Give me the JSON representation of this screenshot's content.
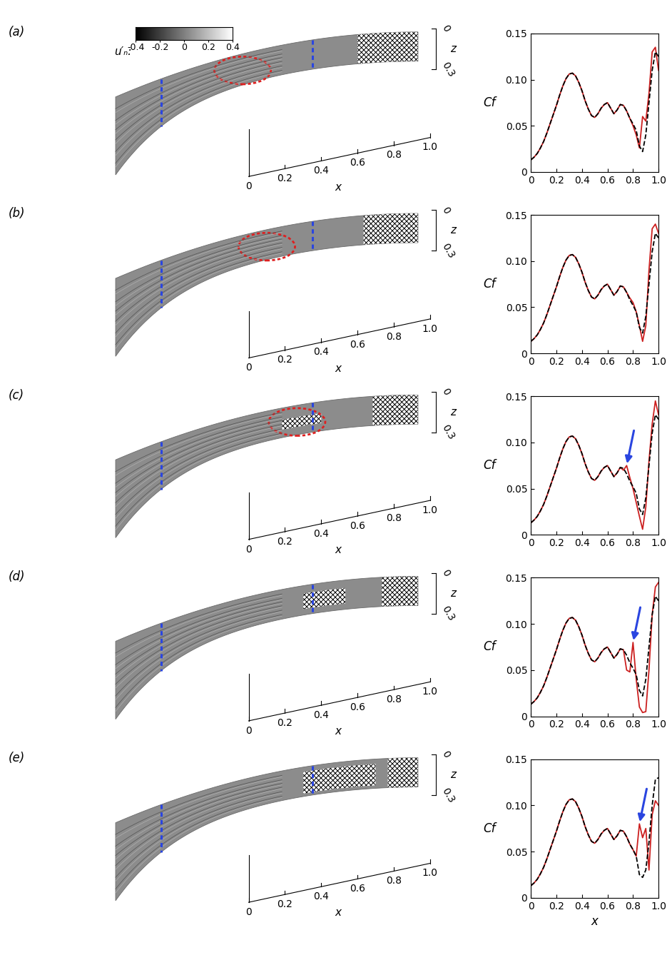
{
  "colorbar": {
    "label": "u′ₙ:",
    "lim": [
      -0.4,
      0.4
    ],
    "ticks": [
      -0.4,
      -0.2,
      0,
      0.2,
      0.4
    ]
  },
  "surface_axes": {
    "x_label": "x",
    "z_label": "z",
    "xlim": [
      0,
      1.0
    ],
    "zlim": [
      0,
      0.3
    ],
    "xticks": [
      0,
      0.2,
      0.4,
      0.6,
      0.8,
      {
        "value": 1.0,
        "label": "1.0"
      }
    ],
    "zticks": [
      0,
      0.3
    ]
  },
  "surfaces": [
    {
      "dashed_x": [
        0.15,
        0.65
      ],
      "ellipse": {
        "x": 0.42,
        "z": 0.16
      },
      "turbulent_regions": [
        {
          "x": [
            0.8,
            1.0
          ],
          "z": [
            0.0,
            0.3
          ]
        }
      ]
    },
    {
      "dashed_x": [
        0.15,
        0.65
      ],
      "ellipse": {
        "x": 0.5,
        "z": 0.17
      },
      "turbulent_regions": [
        {
          "x": [
            0.82,
            1.0
          ],
          "z": [
            0.0,
            0.3
          ]
        }
      ]
    },
    {
      "dashed_x": [
        0.15,
        0.65
      ],
      "ellipse": {
        "x": 0.6,
        "z": 0.17
      },
      "turbulent_regions": [
        {
          "x": [
            0.55,
            0.68
          ],
          "z": [
            0.12,
            0.22
          ]
        },
        {
          "x": [
            0.85,
            1.0
          ],
          "z": [
            0.0,
            0.3
          ]
        }
      ]
    },
    {
      "dashed_x": [
        0.15,
        0.65
      ],
      "ellipse": null,
      "turbulent_regions": [
        {
          "x": [
            0.62,
            0.76
          ],
          "z": [
            0.08,
            0.24
          ]
        },
        {
          "x": [
            0.88,
            1.0
          ],
          "z": [
            0.0,
            0.3
          ]
        }
      ]
    },
    {
      "dashed_x": [
        0.15,
        0.65
      ],
      "ellipse": null,
      "turbulent_regions": [
        {
          "x": [
            0.62,
            0.86
          ],
          "z": [
            0.05,
            0.27
          ]
        },
        {
          "x": [
            0.9,
            1.0
          ],
          "z": [
            0.0,
            0.3
          ]
        }
      ]
    }
  ],
  "chart_data": [
    {
      "type": "line",
      "title": "(a)",
      "y_label": "Cf",
      "xlim": [
        0,
        1.0
      ],
      "ylim": [
        0,
        0.15
      ],
      "xticks": [
        0,
        0.2,
        0.4,
        0.6,
        0.8,
        {
          "value": 1.0,
          "label": "1.0"
        }
      ],
      "yticks": [
        0,
        0.05,
        {
          "value": 0.1,
          "label": "0.10"
        },
        0.15
      ],
      "arrow_x": null,
      "x": [
        0,
        0.025,
        0.05,
        0.075,
        0.1,
        0.125,
        0.15,
        0.175,
        0.2,
        0.225,
        0.25,
        0.275,
        0.3,
        0.325,
        0.35,
        0.375,
        0.4,
        0.425,
        0.45,
        0.475,
        0.5,
        0.525,
        0.55,
        0.575,
        0.6,
        0.625,
        0.65,
        0.675,
        0.7,
        0.725,
        0.75,
        0.775,
        0.8,
        0.825,
        0.85,
        0.875,
        0.9,
        0.925,
        0.95,
        0.975,
        1.0
      ],
      "series": [
        {
          "color": "#cc2020",
          "line_style": "solid",
          "values": [
            0.013,
            0.016,
            0.02,
            0.026,
            0.033,
            0.042,
            0.052,
            0.062,
            0.072,
            0.083,
            0.093,
            0.101,
            0.106,
            0.107,
            0.104,
            0.097,
            0.088,
            0.077,
            0.068,
            0.061,
            0.059,
            0.063,
            0.069,
            0.073,
            0.075,
            0.069,
            0.063,
            0.067,
            0.073,
            0.072,
            0.066,
            0.058,
            0.05,
            0.04,
            0.026,
            0.06,
            0.055,
            0.085,
            0.13,
            0.135,
            0.11
          ]
        },
        {
          "color": "#000000",
          "line_style": "dashed",
          "values": [
            0.013,
            0.016,
            0.02,
            0.026,
            0.033,
            0.042,
            0.052,
            0.062,
            0.072,
            0.083,
            0.093,
            0.101,
            0.106,
            0.107,
            0.104,
            0.097,
            0.088,
            0.077,
            0.068,
            0.061,
            0.059,
            0.063,
            0.069,
            0.073,
            0.075,
            0.069,
            0.063,
            0.067,
            0.073,
            0.072,
            0.066,
            0.058,
            0.052,
            0.045,
            0.028,
            0.022,
            0.04,
            0.075,
            0.11,
            0.13,
            0.125
          ]
        }
      ]
    },
    {
      "type": "line",
      "title": "(b)",
      "y_label": "Cf",
      "xlim": [
        0,
        1.0
      ],
      "ylim": [
        0,
        0.15
      ],
      "xticks": [
        0,
        0.2,
        0.4,
        0.6,
        0.8,
        {
          "value": 1.0,
          "label": "1.0"
        }
      ],
      "yticks": [
        0,
        0.05,
        {
          "value": 0.1,
          "label": "0.10"
        },
        0.15
      ],
      "arrow_x": null,
      "x": [
        0,
        0.025,
        0.05,
        0.075,
        0.1,
        0.125,
        0.15,
        0.175,
        0.2,
        0.225,
        0.25,
        0.275,
        0.3,
        0.325,
        0.35,
        0.375,
        0.4,
        0.425,
        0.45,
        0.475,
        0.5,
        0.525,
        0.55,
        0.575,
        0.6,
        0.625,
        0.65,
        0.675,
        0.7,
        0.725,
        0.75,
        0.775,
        0.8,
        0.825,
        0.85,
        0.875,
        0.9,
        0.925,
        0.95,
        0.975,
        1.0
      ],
      "series": [
        {
          "color": "#cc2020",
          "line_style": "solid",
          "values": [
            0.013,
            0.016,
            0.02,
            0.026,
            0.033,
            0.042,
            0.052,
            0.062,
            0.072,
            0.083,
            0.093,
            0.101,
            0.106,
            0.107,
            0.104,
            0.097,
            0.088,
            0.077,
            0.068,
            0.061,
            0.059,
            0.063,
            0.069,
            0.073,
            0.075,
            0.069,
            0.063,
            0.067,
            0.073,
            0.072,
            0.066,
            0.06,
            0.055,
            0.045,
            0.03,
            0.013,
            0.03,
            0.09,
            0.135,
            0.14,
            0.13
          ]
        },
        {
          "color": "#000000",
          "line_style": "dashed",
          "values": [
            0.013,
            0.016,
            0.02,
            0.026,
            0.033,
            0.042,
            0.052,
            0.062,
            0.072,
            0.083,
            0.093,
            0.101,
            0.106,
            0.107,
            0.104,
            0.097,
            0.088,
            0.077,
            0.068,
            0.061,
            0.059,
            0.063,
            0.069,
            0.073,
            0.075,
            0.069,
            0.063,
            0.067,
            0.073,
            0.072,
            0.066,
            0.058,
            0.052,
            0.045,
            0.028,
            0.022,
            0.04,
            0.075,
            0.11,
            0.13,
            0.125
          ]
        }
      ]
    },
    {
      "type": "line",
      "title": "(c)",
      "y_label": "Cf",
      "xlim": [
        0,
        1.0
      ],
      "ylim": [
        0,
        0.15
      ],
      "xticks": [
        0,
        0.2,
        0.4,
        0.6,
        0.8,
        {
          "value": 1.0,
          "label": "1.0"
        }
      ],
      "yticks": [
        0,
        0.05,
        {
          "value": 0.1,
          "label": "0.10"
        },
        0.15
      ],
      "arrow_x": 0.75,
      "x": [
        0,
        0.025,
        0.05,
        0.075,
        0.1,
        0.125,
        0.15,
        0.175,
        0.2,
        0.225,
        0.25,
        0.275,
        0.3,
        0.325,
        0.35,
        0.375,
        0.4,
        0.425,
        0.45,
        0.475,
        0.5,
        0.525,
        0.55,
        0.575,
        0.6,
        0.625,
        0.65,
        0.675,
        0.7,
        0.725,
        0.75,
        0.775,
        0.8,
        0.825,
        0.85,
        0.875,
        0.9,
        0.925,
        0.95,
        0.975,
        1.0
      ],
      "series": [
        {
          "color": "#cc2020",
          "line_style": "solid",
          "values": [
            0.013,
            0.016,
            0.02,
            0.026,
            0.033,
            0.042,
            0.052,
            0.062,
            0.072,
            0.083,
            0.093,
            0.101,
            0.106,
            0.107,
            0.104,
            0.097,
            0.088,
            0.077,
            0.068,
            0.061,
            0.059,
            0.063,
            0.069,
            0.073,
            0.075,
            0.069,
            0.063,
            0.067,
            0.073,
            0.07,
            0.075,
            0.062,
            0.05,
            0.035,
            0.02,
            0.006,
            0.03,
            0.08,
            0.12,
            0.145,
            0.13
          ]
        },
        {
          "color": "#000000",
          "line_style": "dashed",
          "values": [
            0.013,
            0.016,
            0.02,
            0.026,
            0.033,
            0.042,
            0.052,
            0.062,
            0.072,
            0.083,
            0.093,
            0.101,
            0.106,
            0.107,
            0.104,
            0.097,
            0.088,
            0.077,
            0.068,
            0.061,
            0.059,
            0.063,
            0.069,
            0.073,
            0.075,
            0.069,
            0.063,
            0.067,
            0.073,
            0.072,
            0.066,
            0.058,
            0.052,
            0.045,
            0.028,
            0.022,
            0.04,
            0.075,
            0.11,
            0.13,
            0.125
          ]
        }
      ]
    },
    {
      "type": "line",
      "title": "(d)",
      "y_label": "Cf",
      "xlim": [
        0,
        1.0
      ],
      "ylim": [
        0,
        0.15
      ],
      "xticks": [
        0,
        0.2,
        0.4,
        0.6,
        0.8,
        {
          "value": 1.0,
          "label": "1.0"
        }
      ],
      "yticks": [
        0,
        0.05,
        {
          "value": 0.1,
          "label": "0.10"
        },
        0.15
      ],
      "arrow_x": 0.8,
      "x": [
        0,
        0.025,
        0.05,
        0.075,
        0.1,
        0.125,
        0.15,
        0.175,
        0.2,
        0.225,
        0.25,
        0.275,
        0.3,
        0.325,
        0.35,
        0.375,
        0.4,
        0.425,
        0.45,
        0.475,
        0.5,
        0.525,
        0.55,
        0.575,
        0.6,
        0.625,
        0.65,
        0.675,
        0.7,
        0.725,
        0.75,
        0.775,
        0.8,
        0.825,
        0.85,
        0.875,
        0.9,
        0.925,
        0.95,
        0.975,
        1.0
      ],
      "series": [
        {
          "color": "#cc2020",
          "line_style": "solid",
          "values": [
            0.013,
            0.016,
            0.02,
            0.026,
            0.033,
            0.042,
            0.052,
            0.062,
            0.072,
            0.083,
            0.093,
            0.101,
            0.106,
            0.107,
            0.104,
            0.097,
            0.088,
            0.077,
            0.068,
            0.061,
            0.059,
            0.063,
            0.069,
            0.073,
            0.075,
            0.069,
            0.063,
            0.067,
            0.073,
            0.072,
            0.05,
            0.048,
            0.08,
            0.04,
            0.01,
            0.004,
            0.005,
            0.05,
            0.11,
            0.14,
            0.145
          ]
        },
        {
          "color": "#000000",
          "line_style": "dashed",
          "values": [
            0.013,
            0.016,
            0.02,
            0.026,
            0.033,
            0.042,
            0.052,
            0.062,
            0.072,
            0.083,
            0.093,
            0.101,
            0.106,
            0.107,
            0.104,
            0.097,
            0.088,
            0.077,
            0.068,
            0.061,
            0.059,
            0.063,
            0.069,
            0.073,
            0.075,
            0.069,
            0.063,
            0.067,
            0.073,
            0.072,
            0.066,
            0.058,
            0.052,
            0.045,
            0.028,
            0.022,
            0.04,
            0.075,
            0.11,
            0.13,
            0.125
          ]
        }
      ]
    },
    {
      "type": "line",
      "title": "(e)",
      "x_label": "x",
      "y_label": "Cf",
      "xlim": [
        0,
        1.0
      ],
      "ylim": [
        0,
        0.15
      ],
      "xticks": [
        0,
        0.2,
        0.4,
        0.6,
        0.8,
        {
          "value": 1.0,
          "label": "1.0"
        }
      ],
      "yticks": [
        0,
        0.05,
        {
          "value": 0.1,
          "label": "0.10"
        },
        0.15
      ],
      "arrow_x": 0.85,
      "x": [
        0,
        0.025,
        0.05,
        0.075,
        0.1,
        0.125,
        0.15,
        0.175,
        0.2,
        0.225,
        0.25,
        0.275,
        0.3,
        0.325,
        0.35,
        0.375,
        0.4,
        0.425,
        0.45,
        0.475,
        0.5,
        0.525,
        0.55,
        0.575,
        0.6,
        0.625,
        0.65,
        0.675,
        0.7,
        0.725,
        0.75,
        0.775,
        0.8,
        0.825,
        0.85,
        0.875,
        0.9,
        0.925,
        0.95,
        0.975,
        1.0
      ],
      "series": [
        {
          "color": "#cc2020",
          "line_style": "solid",
          "values": [
            0.013,
            0.016,
            0.02,
            0.026,
            0.033,
            0.042,
            0.052,
            0.062,
            0.072,
            0.083,
            0.093,
            0.101,
            0.106,
            0.107,
            0.104,
            0.097,
            0.088,
            0.077,
            0.068,
            0.061,
            0.059,
            0.063,
            0.069,
            0.073,
            0.075,
            0.069,
            0.063,
            0.067,
            0.073,
            0.072,
            0.066,
            0.058,
            0.052,
            0.045,
            0.08,
            0.065,
            0.075,
            0.03,
            0.09,
            0.105,
            0.1
          ]
        },
        {
          "color": "#000000",
          "line_style": "dashed",
          "values": [
            0.013,
            0.016,
            0.02,
            0.026,
            0.033,
            0.042,
            0.052,
            0.062,
            0.072,
            0.083,
            0.093,
            0.101,
            0.106,
            0.107,
            0.104,
            0.097,
            0.088,
            0.077,
            0.068,
            0.061,
            0.059,
            0.063,
            0.069,
            0.073,
            0.075,
            0.069,
            0.063,
            0.067,
            0.073,
            0.072,
            0.066,
            0.058,
            0.052,
            0.045,
            0.025,
            0.022,
            0.03,
            0.06,
            0.1,
            0.128,
            0.13
          ]
        }
      ]
    }
  ]
}
